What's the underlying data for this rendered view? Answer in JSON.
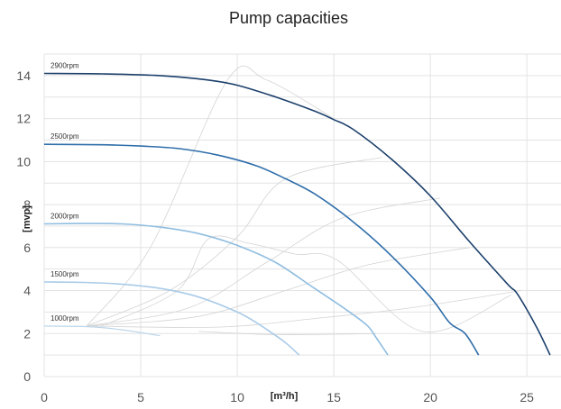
{
  "chart_data": {
    "type": "line",
    "title": "Pump capacities",
    "xlabel": "[m³/h]",
    "ylabel": "[mvp]",
    "xlim": [
      0,
      27
    ],
    "ylim": [
      0,
      15
    ],
    "xticks": [
      "0",
      "5",
      "10",
      "15",
      "20",
      "25"
    ],
    "yticks": [
      "0",
      "2",
      "4",
      "6",
      "8",
      "10",
      "12",
      "14"
    ],
    "grid": true,
    "series": [
      {
        "name": "2900rpm",
        "color": "#1b3f6b",
        "x": [
          0,
          3,
          6,
          8.4,
          10,
          12,
          14,
          15,
          16,
          18,
          20,
          22,
          24,
          24.5,
          25.5,
          26.2
        ],
        "y": [
          14.1,
          14.08,
          14.0,
          13.8,
          13.55,
          13.0,
          12.35,
          11.95,
          11.5,
          10.1,
          8.4,
          6.3,
          4.3,
          3.85,
          2.3,
          1.0
        ]
      },
      {
        "name": "2500rpm",
        "color": "#2f6eaa",
        "x": [
          0,
          3,
          5,
          7,
          9,
          11,
          12.5,
          14,
          16,
          18,
          20,
          21,
          21.8,
          22.5
        ],
        "y": [
          10.8,
          10.78,
          10.72,
          10.6,
          10.3,
          9.8,
          9.2,
          8.5,
          7.2,
          5.6,
          3.7,
          2.5,
          2.0,
          1.0
        ]
      },
      {
        "name": "2000rpm",
        "color": "#8fbde0",
        "x": [
          0,
          2,
          4,
          6,
          8,
          10,
          12,
          14,
          15.5,
          16.7,
          17.2,
          17.8
        ],
        "y": [
          7.1,
          7.12,
          7.1,
          6.95,
          6.65,
          6.1,
          5.3,
          4.1,
          3.2,
          2.4,
          1.8,
          1.0
        ]
      },
      {
        "name": "1500rpm",
        "color": "#a9cbe8",
        "x": [
          0,
          2,
          4,
          6,
          8,
          10,
          11,
          12,
          12.6,
          13.2
        ],
        "y": [
          4.4,
          4.38,
          4.3,
          4.1,
          3.7,
          3.0,
          2.5,
          1.9,
          1.5,
          1.0
        ]
      },
      {
        "name": "1000rpm",
        "color": "#bcd6ea",
        "x": [
          0,
          2,
          3,
          4,
          5,
          6
        ],
        "y": [
          2.35,
          2.33,
          2.28,
          2.18,
          2.05,
          1.9
        ]
      }
    ],
    "iso_efficiency_lines": [
      {
        "color": "#d4d4d4",
        "x": [
          2.9,
          6.9,
          8.5,
          10.6,
          13.0,
          15.2,
          19.6,
          24.2
        ],
        "y": [
          2.32,
          4.0,
          6.4,
          6.2,
          5.7,
          5.4,
          2.1,
          3.8
        ]
      },
      {
        "color": "#d4d4d4",
        "x": [
          2.2,
          5.5,
          9.5,
          11.5,
          15.0
        ],
        "y": [
          2.35,
          6.0,
          13.8,
          13.8,
          12.0
        ]
      },
      {
        "color": "#d4d4d4",
        "x": [
          2.2,
          6.5,
          10.0,
          12.5,
          17.5
        ],
        "y": [
          2.35,
          4.0,
          6.5,
          9.2,
          10.2
        ]
      },
      {
        "color": "#d4d4d4",
        "x": [
          2.2,
          7.5,
          11.5,
          15.5,
          20.5
        ],
        "y": [
          2.35,
          3.2,
          5.3,
          7.4,
          8.3
        ]
      },
      {
        "color": "#d4d4d4",
        "x": [
          2.2,
          8.0,
          12.5,
          16.8,
          22.0
        ],
        "y": [
          2.35,
          2.8,
          4.0,
          5.2,
          6.0
        ]
      },
      {
        "color": "#d4d4d4",
        "x": [
          2.2,
          9.0,
          14.0,
          19.0,
          24.7
        ],
        "y": [
          2.35,
          2.3,
          2.7,
          3.2,
          4.0
        ]
      },
      {
        "color": "#d4d4d4",
        "x": [
          8.0,
          12.0,
          16.0,
          17.2
        ],
        "y": [
          2.1,
          1.95,
          1.98,
          2.0
        ]
      }
    ]
  }
}
